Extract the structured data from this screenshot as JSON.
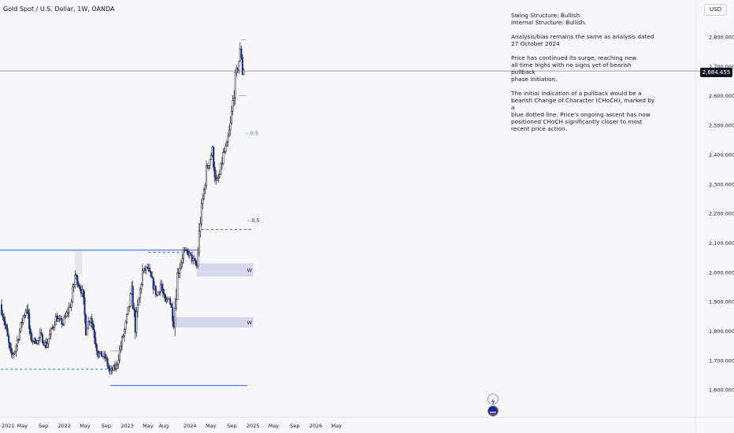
{
  "header": {
    "title": "Gold Spot / U.S. Dollar, 1W, OANDA"
  },
  "toolbar": {
    "currency": "USD"
  },
  "notes": [
    [
      "Swing Structure: Bullish.",
      "Internal Structure: Bullish."
    ],
    [
      "Analysis/bias remains the same as analysis dated",
      "27 October 2024"
    ],
    [
      "Price has continued its surge, reaching new",
      "all-time highs with no signs yet of bearish pullback",
      "phase initiation."
    ],
    [
      "The initial indication of a pullback would be a",
      "bearish Change of Character (CHoCH), marked by a",
      "blue dotted line. Price's ongoing ascent has now",
      "positioned CHoCH significantly closer to most",
      "recent price action."
    ]
  ],
  "chart_data": {
    "type": "candlestick",
    "symbol": "XAUUSD",
    "timeframe": "1W",
    "ylim": [
      1570,
      2900
    ],
    "price_ticks": [
      "2,800.000",
      "2,700.000",
      "2,600.000",
      "2,500.000",
      "2,400.000",
      "2,300.000",
      "2,200.000",
      "2,100.000",
      "2,000.000",
      "1,900.000",
      "1,800.000",
      "1,700.000",
      "1,600.000"
    ],
    "price_tick_values": [
      2800,
      2700,
      2600,
      2500,
      2400,
      2300,
      2200,
      2100,
      2000,
      1900,
      1800,
      1700,
      1600
    ],
    "time_ticks": [
      "2021",
      "May",
      "Sep",
      "2022",
      "May",
      "Sep",
      "2023",
      "May",
      "Aug",
      "2024",
      "May",
      "Sep",
      "2025",
      "May",
      "Sep",
      "2026",
      "May"
    ],
    "time_tick_dates": [
      "2021-01-01",
      "2021-05-01",
      "2021-09-01",
      "2022-01-01",
      "2022-05-01",
      "2022-09-01",
      "2023-01-01",
      "2023-05-01",
      "2023-08-01",
      "2024-01-01",
      "2024-05-01",
      "2024-09-01",
      "2025-01-01",
      "2025-05-01",
      "2025-09-01",
      "2026-01-01",
      "2026-05-01"
    ],
    "last_price": "2,684.455",
    "last_price_value": 2684.455,
    "anchors": [
      [
        "2021-01-01",
        1890
      ],
      [
        "2021-01-22",
        1840
      ],
      [
        "2021-03-05",
        1710
      ],
      [
        "2021-03-26",
        1735
      ],
      [
        "2021-05-14",
        1850
      ],
      [
        "2021-06-04",
        1880
      ],
      [
        "2021-06-25",
        1770
      ],
      [
        "2021-08-06",
        1765
      ],
      [
        "2021-08-20",
        1785
      ],
      [
        "2021-09-24",
        1750
      ],
      [
        "2021-11-19",
        1845
      ],
      [
        "2021-12-31",
        1825
      ],
      [
        "2022-02-18",
        1900
      ],
      [
        "2022-03-11",
        1990
      ],
      [
        "2022-04-22",
        1930
      ],
      [
        "2022-05-13",
        1810
      ],
      [
        "2022-06-10",
        1850
      ],
      [
        "2022-07-22",
        1725
      ],
      [
        "2022-09-02",
        1710
      ],
      [
        "2022-09-30",
        1660
      ],
      [
        "2022-11-04",
        1680
      ],
      [
        "2022-12-30",
        1820
      ],
      [
        "2023-02-03",
        1935
      ],
      [
        "2023-02-24",
        1815
      ],
      [
        "2023-04-07",
        2000
      ],
      [
        "2023-05-05",
        2015
      ],
      [
        "2023-06-09",
        1955
      ],
      [
        "2023-06-30",
        1920
      ],
      [
        "2023-07-21",
        1960
      ],
      [
        "2023-08-18",
        1890
      ],
      [
        "2023-09-08",
        1920
      ],
      [
        "2023-10-06",
        1830
      ],
      [
        "2023-10-27",
        1990
      ],
      [
        "2023-12-01",
        2070
      ],
      [
        "2023-12-29",
        2065
      ],
      [
        "2024-02-16",
        2020
      ],
      [
        "2024-03-08",
        2180
      ],
      [
        "2024-04-12",
        2345
      ],
      [
        "2024-05-17",
        2415
      ],
      [
        "2024-06-07",
        2300
      ],
      [
        "2024-06-28",
        2330
      ],
      [
        "2024-07-19",
        2400
      ],
      [
        "2024-08-09",
        2430
      ],
      [
        "2024-08-30",
        2500
      ],
      [
        "2024-09-27",
        2655
      ],
      [
        "2024-10-18",
        2720
      ],
      [
        "2024-10-25",
        2748
      ],
      [
        "2024-11-01",
        2736
      ],
      [
        "2024-11-08",
        2684
      ]
    ],
    "zones": [
      {
        "from": "2024-02-09",
        "to": "2025-01-03",
        "low": 1985,
        "high": 2030,
        "label": "W",
        "color": "#d1d4ec"
      },
      {
        "from": "2023-10-06",
        "to": "2025-01-03",
        "low": 1812,
        "high": 1847,
        "label": "W",
        "color": "#d1d4ec"
      },
      {
        "from": "2022-03-04",
        "to": "2022-04-15",
        "low": 1990,
        "high": 2075,
        "label": "",
        "color": "#e3e3e3"
      }
    ],
    "levels": [
      {
        "y": 2075,
        "from": "2020-12-01",
        "to": "2024-02-28",
        "style": "solid"
      },
      {
        "y": 1615,
        "from": "2022-09-23",
        "to": "2024-11-30",
        "style": "solid"
      },
      {
        "y": 1670,
        "from": "2020-12-01",
        "to": "2022-11-11",
        "style": "dashed"
      },
      {
        "y": 2068,
        "from": "2023-05-05",
        "to": "2024-01-26",
        "style": "dashed"
      },
      {
        "y": 2145,
        "from": "2024-03-08",
        "to": "2025-01-03",
        "style": "dashed"
      },
      {
        "y": 2790,
        "from": "2024-10-25",
        "to": "2024-11-22",
        "style": "thin"
      },
      {
        "y": 2600,
        "from": "2024-10-11",
        "to": "2024-11-22",
        "style": "thin"
      },
      {
        "y": 1732,
        "from": "2022-09-23",
        "to": "2022-11-11",
        "style": "thin"
      }
    ],
    "fib_labels": [
      {
        "text": "0.5",
        "x": "2024-11-22",
        "y": 2473,
        "color": "#2962ff"
      },
      {
        "text": "0.5",
        "x": "2024-11-29",
        "y": 2178,
        "color": "#131722"
      }
    ],
    "colors": {
      "up": "#ffffff",
      "down": "#1c2c8c",
      "level": "#2962ff",
      "last_price_line": "#787b86",
      "text": "#131722"
    }
  }
}
